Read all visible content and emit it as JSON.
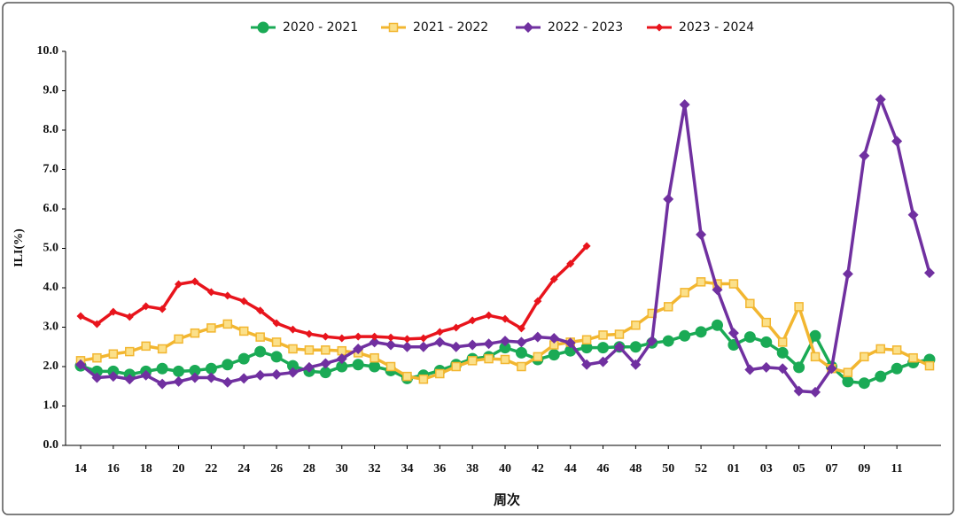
{
  "chart_data": {
    "type": "line",
    "xlabel": "周次",
    "ylabel": "ILI(%)",
    "categories": [
      "14",
      null,
      "16",
      null,
      "18",
      null,
      "20",
      null,
      "22",
      null,
      "24",
      null,
      "26",
      null,
      "28",
      null,
      "30",
      null,
      "32",
      null,
      "34",
      null,
      "36",
      null,
      "38",
      null,
      "40",
      null,
      "42",
      null,
      "44",
      null,
      "46",
      null,
      "48",
      null,
      "50",
      null,
      "52",
      null,
      "01",
      null,
      "03",
      null,
      "05",
      null,
      "07",
      null,
      "09",
      null,
      "11",
      null,
      null
    ],
    "ylim": [
      0,
      10
    ],
    "yticks": [
      {
        "value": 0,
        "label": "0.0"
      },
      {
        "value": 1,
        "label": "1.0"
      },
      {
        "value": 2,
        "label": "2.0"
      },
      {
        "value": 3,
        "label": "3.0"
      },
      {
        "value": 4,
        "label": "4.0"
      },
      {
        "value": 5,
        "label": "5.0"
      },
      {
        "value": 6,
        "label": "6.0"
      },
      {
        "value": 7,
        "label": "7.0"
      },
      {
        "value": 8,
        "label": "8.0"
      },
      {
        "value": 9,
        "label": "9.0"
      },
      {
        "value": 10,
        "label": "10.0"
      }
    ],
    "grid": false,
    "legend": "top",
    "series": [
      {
        "name": "2020 - 2021",
        "color": "#1aaa55",
        "marker": "circle",
        "values": [
          2.02,
          1.88,
          1.88,
          1.8,
          1.88,
          1.95,
          1.88,
          1.9,
          1.95,
          2.05,
          2.2,
          2.38,
          2.25,
          2.02,
          1.88,
          1.85,
          2.0,
          2.05,
          2.0,
          1.9,
          1.7,
          1.78,
          1.9,
          2.05,
          2.2,
          2.25,
          2.48,
          2.35,
          2.18,
          2.3,
          2.4,
          2.48,
          2.48,
          2.5,
          2.5,
          2.6,
          2.65,
          2.78,
          2.88,
          3.05,
          2.55,
          2.75,
          2.62,
          2.35,
          1.98,
          2.78,
          2.0,
          1.62,
          1.58,
          1.75,
          1.95,
          2.1,
          2.18
        ]
      },
      {
        "name": "2021 - 2022",
        "color": "#f2b630",
        "marker": "square",
        "values": [
          2.15,
          2.22,
          2.32,
          2.38,
          2.52,
          2.45,
          2.7,
          2.85,
          2.98,
          3.08,
          2.9,
          2.75,
          2.62,
          2.45,
          2.42,
          2.42,
          2.4,
          2.35,
          2.22,
          2.0,
          1.75,
          1.68,
          1.82,
          2.0,
          2.15,
          2.2,
          2.18,
          2.0,
          2.25,
          2.55,
          2.62,
          2.68,
          2.8,
          2.82,
          3.05,
          3.35,
          3.52,
          3.88,
          4.15,
          4.1,
          4.1,
          3.6,
          3.12,
          2.62,
          3.52,
          2.25,
          1.95,
          1.85,
          2.25,
          2.45,
          2.42,
          2.22,
          2.02
        ]
      },
      {
        "name": "2022 - 2023",
        "color": "#7030a0",
        "marker": "diamond",
        "values": [
          2.05,
          1.72,
          1.75,
          1.68,
          1.78,
          1.56,
          1.62,
          1.72,
          1.72,
          1.6,
          1.7,
          1.78,
          1.8,
          1.85,
          1.98,
          2.08,
          2.2,
          2.45,
          2.62,
          2.55,
          2.5,
          2.5,
          2.62,
          2.5,
          2.55,
          2.58,
          2.65,
          2.62,
          2.75,
          2.72,
          2.6,
          2.05,
          2.12,
          2.5,
          2.05,
          2.65,
          6.25,
          8.65,
          5.35,
          3.95,
          2.85,
          1.92,
          1.98,
          1.95,
          1.38,
          1.35,
          1.95,
          4.35,
          7.35,
          8.78,
          7.72,
          5.85,
          4.38
        ]
      },
      {
        "name": "2023 - 2024",
        "color": "#e8141c",
        "marker": "small-diamond",
        "values": [
          3.28,
          3.08,
          3.39,
          3.26,
          3.53,
          3.46,
          4.09,
          4.16,
          3.89,
          3.8,
          3.66,
          3.42,
          3.1,
          2.94,
          2.83,
          2.76,
          2.72,
          2.76,
          2.76,
          2.74,
          2.7,
          2.72,
          2.88,
          2.99,
          3.17,
          3.3,
          3.21,
          2.97,
          3.66,
          4.22,
          4.61,
          5.06,
          null,
          null,
          null,
          null,
          null,
          null,
          null,
          null,
          null,
          null,
          null,
          null,
          null,
          null,
          null,
          null,
          null,
          null,
          null,
          null,
          null
        ]
      }
    ]
  }
}
